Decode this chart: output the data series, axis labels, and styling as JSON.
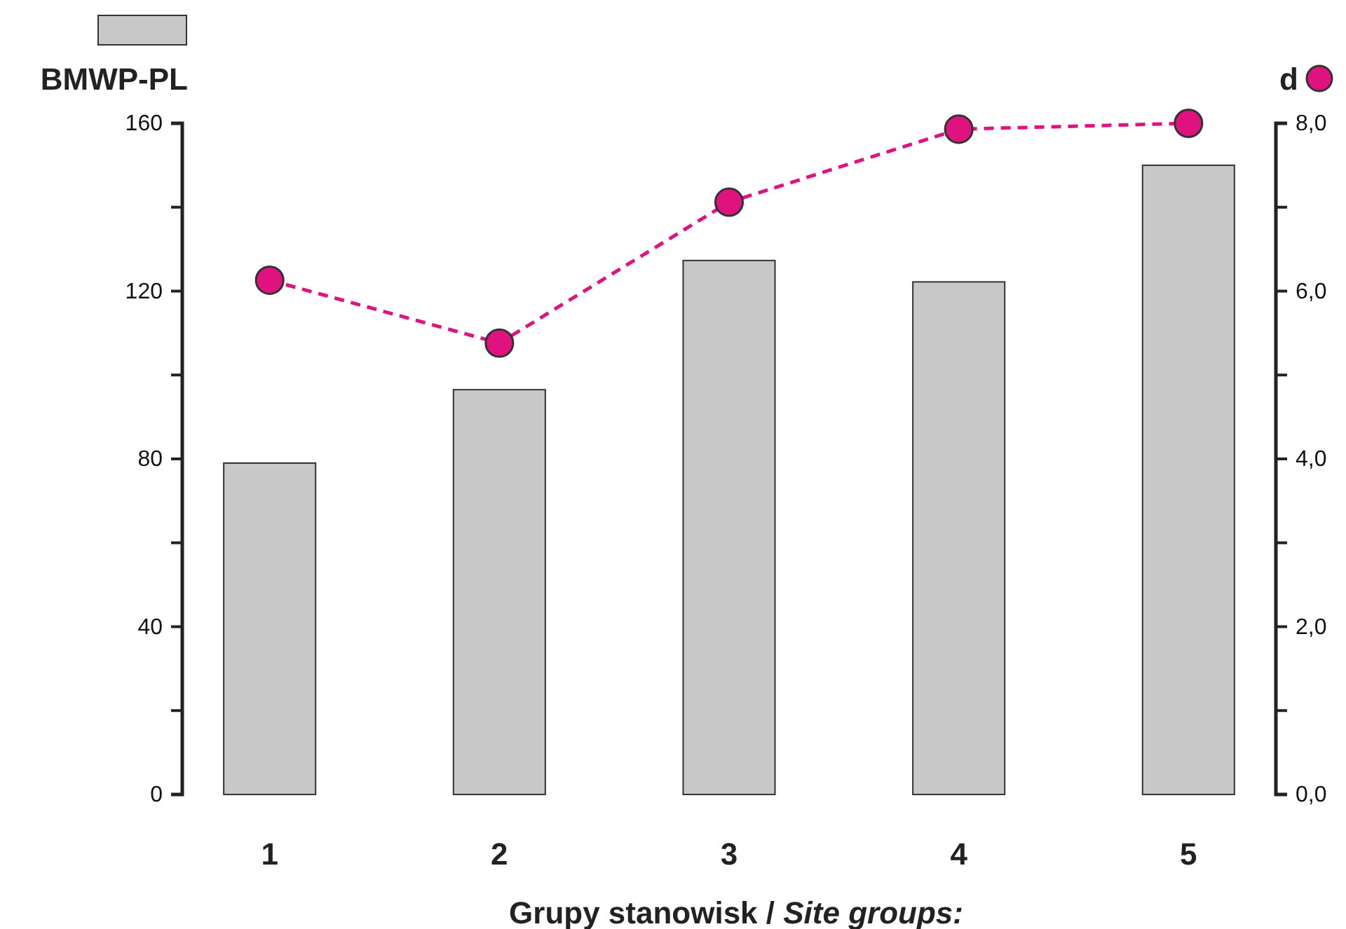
{
  "chart_data": {
    "type": "bar",
    "categories": [
      "1",
      "2",
      "3",
      "4",
      "5"
    ],
    "series": [
      {
        "color": "#c8c8c8",
        "values": [
          79,
          96.5,
          127.3,
          122.2,
          150
        ]
      },
      {
        "type": "line",
        "axis": "y2",
        "color": "#e0127f",
        "values": [
          6.13,
          5.38,
          7.06,
          7.93,
          8.0
        ],
        "marker": "circle",
        "line_style": "dashed"
      }
    ],
    "xlabel": "Grupy stanowisk / Site groups:",
    "ylabel": "BMWP-PL",
    "y2label": "d",
    "ylim": [
      0,
      160
    ],
    "yticks": [
      0,
      {
        "value": 20,
        "label": null
      },
      40,
      {
        "value": 60,
        "label": null
      },
      80,
      {
        "value": 100,
        "label": null
      },
      120,
      {
        "value": 140,
        "label": null
      },
      160
    ],
    "y2lim": [
      0,
      8
    ],
    "y2ticks": [
      {
        "value": 0,
        "label": "0,0"
      },
      {
        "value": 1,
        "label": null
      },
      {
        "value": 2,
        "label": "2,0"
      },
      {
        "value": 3,
        "label": null
      },
      {
        "value": 4,
        "label": "4,0"
      },
      {
        "value": 5,
        "label": null
      },
      {
        "value": 6,
        "label": "6,0"
      },
      {
        "value": 7,
        "label": null
      },
      {
        "value": 8,
        "label": "8,0"
      }
    ],
    "grid": false
  }
}
